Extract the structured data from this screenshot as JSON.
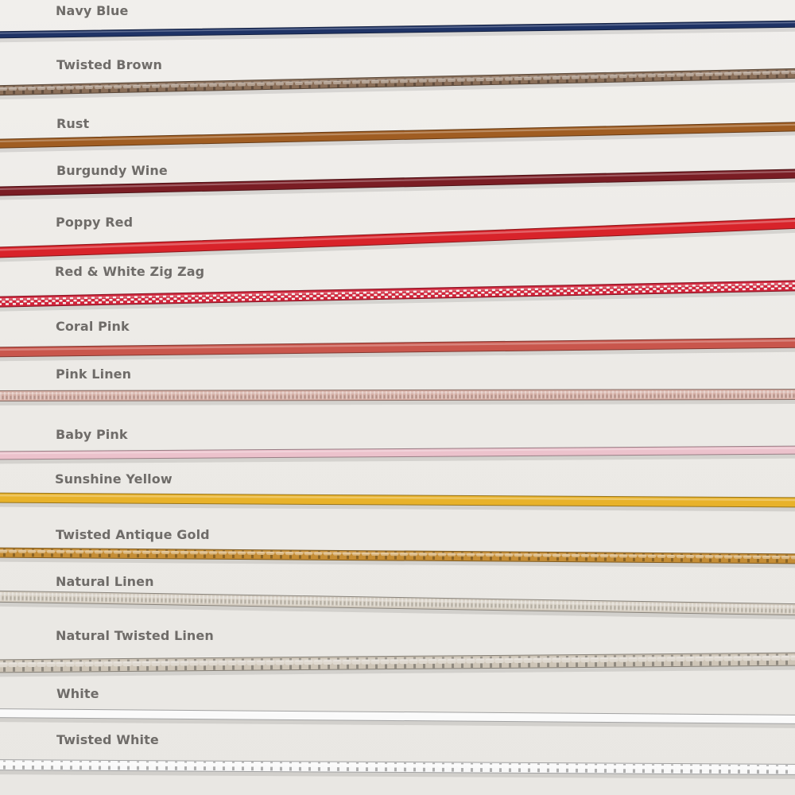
{
  "cords": [
    {
      "name": "Navy Blue",
      "color": "#1f3366",
      "texture": "solid"
    },
    {
      "name": "Twisted Brown",
      "color": "#8a6e58",
      "texture": "twisted"
    },
    {
      "name": "Rust",
      "color": "#a05d22",
      "texture": "solid"
    },
    {
      "name": "Burgundy Wine",
      "color": "#7a1d24",
      "texture": "solid"
    },
    {
      "name": "Poppy Red",
      "color": "#d8232a",
      "texture": "solid"
    },
    {
      "name": "Red & White Zig Zag",
      "color": "#d0243a",
      "color2": "#f3f0ee",
      "texture": "zigzag"
    },
    {
      "name": "Coral Pink",
      "color": "#c9564c",
      "texture": "solid"
    },
    {
      "name": "Pink Linen",
      "color": "#d3aca2",
      "texture": "woven"
    },
    {
      "name": "Baby Pink",
      "color": "#ecc2cc",
      "texture": "solid"
    },
    {
      "name": "Sunshine Yellow",
      "color": "#e8b22a",
      "texture": "solid"
    },
    {
      "name": "Twisted Antique Gold",
      "color": "#c58d35",
      "texture": "twisted"
    },
    {
      "name": "Natural Linen",
      "color": "#d3cbbf",
      "texture": "woven"
    },
    {
      "name": "Natural Twisted Linen",
      "color": "#cec5b7",
      "texture": "twisted"
    },
    {
      "name": "White",
      "color": "#fafafa",
      "texture": "solid"
    },
    {
      "name": "Twisted White",
      "color": "#f8f8f8",
      "texture": "twisted"
    }
  ]
}
